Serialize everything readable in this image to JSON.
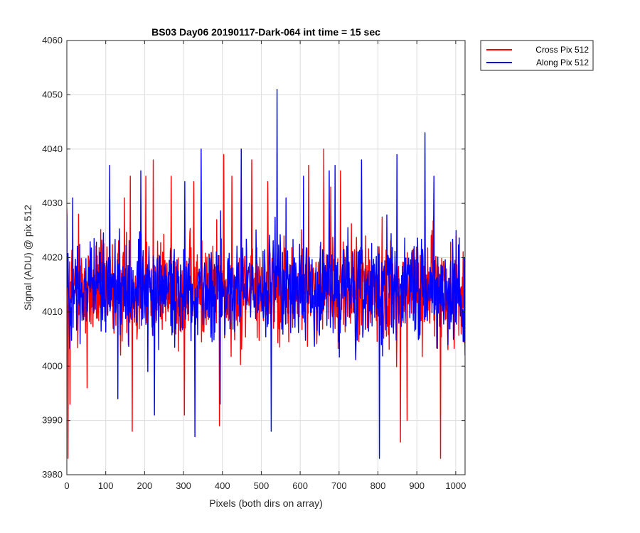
{
  "chart_data": {
    "type": "line",
    "title": "BS03 Day06 20190117-Dark-064 int time = 15 sec",
    "xlabel": "Pixels (both dirs on array)",
    "ylabel": "Signal (ADU) @ pix 512",
    "xlim": [
      0,
      1024
    ],
    "ylim": [
      3980,
      4060
    ],
    "xticks": [
      0,
      100,
      200,
      300,
      400,
      500,
      600,
      700,
      800,
      900,
      1000
    ],
    "yticks": [
      3980,
      3990,
      4000,
      4010,
      4020,
      4030,
      4040,
      4050,
      4060
    ],
    "xtick_labels": [
      "0",
      "100",
      "200",
      "300",
      "400",
      "500",
      "600",
      "700",
      "800",
      "900",
      "1000"
    ],
    "ytick_labels": [
      "3980",
      "3990",
      "4000",
      "4010",
      "4020",
      "4030",
      "4040",
      "4050",
      "4060"
    ],
    "grid": true,
    "legend_position": "outside-top-right",
    "noise_profile": {
      "samples_per_series": 1024,
      "mean": 4014,
      "typical_range": [
        3995,
        4033
      ]
    },
    "series": [
      {
        "name": "Cross Pix 512",
        "color": "#ff0000",
        "key_points": [
          [
            0,
            4029
          ],
          [
            3,
            3983
          ],
          [
            8,
            3993
          ],
          [
            30,
            4028
          ],
          [
            52,
            3996
          ],
          [
            110,
            4033
          ],
          [
            148,
            4031
          ],
          [
            163,
            4035
          ],
          [
            168,
            3988
          ],
          [
            203,
            4035
          ],
          [
            222,
            4038
          ],
          [
            268,
            4035
          ],
          [
            302,
            3991
          ],
          [
            326,
            4034
          ],
          [
            385,
            4027
          ],
          [
            392,
            3989
          ],
          [
            403,
            4039
          ],
          [
            424,
            4035
          ],
          [
            448,
            4040
          ],
          [
            475,
            4038
          ],
          [
            516,
            4034
          ],
          [
            558,
            4024
          ],
          [
            621,
            4037
          ],
          [
            660,
            4040
          ],
          [
            678,
            4033
          ],
          [
            703,
            4036
          ],
          [
            767,
            4024
          ],
          [
            802,
            4022
          ],
          [
            857,
            3986
          ],
          [
            874,
            3990
          ],
          [
            938,
            4025
          ],
          [
            960,
            3983
          ],
          [
            1000,
            4024
          ],
          [
            1024,
            4016
          ]
        ]
      },
      {
        "name": "Along Pix 512",
        "color": "#0000ff",
        "key_points": [
          [
            0,
            4028
          ],
          [
            15,
            4031
          ],
          [
            110,
            4037
          ],
          [
            131,
            3994
          ],
          [
            190,
            4036
          ],
          [
            225,
            3991
          ],
          [
            303,
            4034
          ],
          [
            329,
            3987
          ],
          [
            345,
            4040
          ],
          [
            394,
            3993
          ],
          [
            448,
            4040
          ],
          [
            525,
            3988
          ],
          [
            540,
            4051
          ],
          [
            563,
            4031
          ],
          [
            608,
            4035
          ],
          [
            674,
            4036
          ],
          [
            689,
            4037
          ],
          [
            757,
            4038
          ],
          [
            803,
            3983
          ],
          [
            816,
            4015
          ],
          [
            848,
            4039
          ],
          [
            920,
            4043
          ],
          [
            943,
            4035
          ],
          [
            1000,
            4025
          ],
          [
            1024,
            4002
          ]
        ]
      }
    ]
  }
}
